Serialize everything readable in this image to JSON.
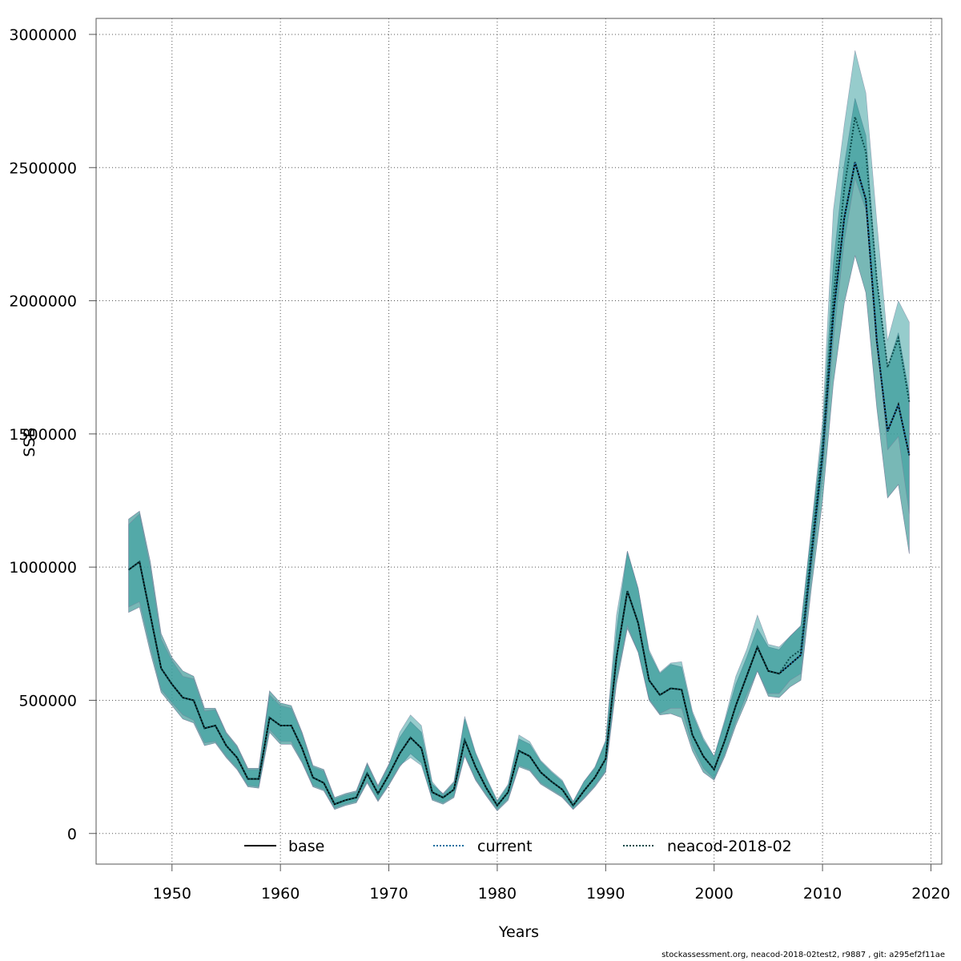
{
  "chart_data": {
    "type": "line",
    "xlabel": "Years",
    "ylabel": "SSB",
    "xlim": [
      1943,
      2021
    ],
    "ylim": [
      -115000,
      3060000
    ],
    "x_ticks": [
      1950,
      1960,
      1970,
      1980,
      1990,
      2000,
      2010,
      2020
    ],
    "y_ticks": [
      0,
      500000,
      1000000,
      1500000,
      2000000,
      2500000,
      3000000
    ],
    "grid": true,
    "legend_position": "bottom",
    "colors": {
      "base_band": "#4e8cb0",
      "current_band": "#49ac96",
      "neacod_band": "#2e9a9a",
      "line": "#000000",
      "current_line": "#1f6fa0",
      "neacod_line": "#0d4a4a"
    },
    "x": [
      1946,
      1947,
      1948,
      1949,
      1950,
      1951,
      1952,
      1953,
      1954,
      1955,
      1956,
      1957,
      1958,
      1959,
      1960,
      1961,
      1962,
      1963,
      1964,
      1965,
      1966,
      1967,
      1968,
      1969,
      1970,
      1971,
      1972,
      1973,
      1974,
      1975,
      1976,
      1977,
      1978,
      1979,
      1980,
      1981,
      1982,
      1983,
      1984,
      1985,
      1986,
      1987,
      1988,
      1989,
      1990,
      1991,
      1992,
      1993,
      1994,
      1995,
      1996,
      1997,
      1998,
      1999,
      2000,
      2001,
      2002,
      2003,
      2004,
      2005,
      2006,
      2007,
      2008,
      2009,
      2010,
      2011,
      2012,
      2013,
      2014,
      2015,
      2016,
      2017,
      2018
    ],
    "series": [
      {
        "name": "base",
        "values": [
          990000,
          1020000,
          820000,
          620000,
          560000,
          510000,
          500000,
          395000,
          405000,
          330000,
          285000,
          205000,
          205000,
          435000,
          405000,
          405000,
          320000,
          210000,
          190000,
          110000,
          125000,
          135000,
          225000,
          150000,
          220000,
          300000,
          360000,
          320000,
          155000,
          135000,
          165000,
          350000,
          250000,
          170000,
          105000,
          155000,
          310000,
          290000,
          230000,
          195000,
          165000,
          105000,
          160000,
          210000,
          280000,
          660000,
          910000,
          790000,
          575000,
          520000,
          545000,
          540000,
          370000,
          290000,
          240000,
          350000,
          480000,
          590000,
          700000,
          610000,
          600000,
          635000,
          670000,
          1050000,
          1420000,
          1950000,
          2310000,
          2520000,
          2380000,
          1850000,
          1510000,
          1610000,
          1420000
        ],
        "upper": [
          1180000,
          1210000,
          1020000,
          750000,
          660000,
          610000,
          590000,
          470000,
          470000,
          380000,
          330000,
          245000,
          245000,
          535000,
          490000,
          480000,
          380000,
          255000,
          240000,
          135000,
          150000,
          160000,
          265000,
          180000,
          260000,
          360000,
          420000,
          380000,
          185000,
          150000,
          195000,
          430000,
          300000,
          205000,
          120000,
          180000,
          355000,
          335000,
          270000,
          230000,
          195000,
          120000,
          195000,
          245000,
          345000,
          760000,
          1060000,
          920000,
          680000,
          600000,
          635000,
          625000,
          450000,
          350000,
          290000,
          420000,
          560000,
          660000,
          770000,
          700000,
          690000,
          740000,
          780000,
          1150000,
          1500000,
          2140000,
          2510000,
          2760000,
          2620000,
          2080000,
          1750000,
          1880000,
          1650000
        ],
        "lower": [
          830000,
          850000,
          680000,
          530000,
          480000,
          430000,
          415000,
          330000,
          340000,
          285000,
          240000,
          175000,
          170000,
          380000,
          335000,
          335000,
          265000,
          175000,
          160000,
          90000,
          105000,
          115000,
          190000,
          120000,
          180000,
          250000,
          300000,
          265000,
          125000,
          110000,
          135000,
          290000,
          200000,
          140000,
          85000,
          125000,
          250000,
          235000,
          185000,
          160000,
          135000,
          90000,
          130000,
          175000,
          230000,
          560000,
          770000,
          680000,
          500000,
          445000,
          450000,
          435000,
          310000,
          230000,
          200000,
          290000,
          405000,
          500000,
          610000,
          515000,
          510000,
          550000,
          575000,
          930000,
          1250000,
          1690000,
          1990000,
          2170000,
          2030000,
          1600000,
          1260000,
          1310000,
          1050000
        ]
      },
      {
        "name": "current",
        "values": [
          990000,
          1020000,
          820000,
          620000,
          560000,
          510000,
          500000,
          395000,
          405000,
          330000,
          285000,
          205000,
          205000,
          435000,
          405000,
          405000,
          320000,
          210000,
          190000,
          110000,
          125000,
          135000,
          225000,
          150000,
          220000,
          300000,
          360000,
          320000,
          155000,
          135000,
          165000,
          350000,
          250000,
          170000,
          105000,
          155000,
          310000,
          290000,
          230000,
          195000,
          165000,
          105000,
          160000,
          210000,
          280000,
          660000,
          910000,
          790000,
          575000,
          520000,
          545000,
          540000,
          370000,
          290000,
          240000,
          350000,
          480000,
          590000,
          700000,
          610000,
          600000,
          635000,
          670000,
          1050000,
          1420000,
          1950000,
          2310000,
          2520000,
          2380000,
          1850000,
          1510000,
          1610000,
          1420000
        ],
        "upper": [
          1180000,
          1210000,
          1020000,
          750000,
          660000,
          610000,
          590000,
          470000,
          470000,
          380000,
          330000,
          245000,
          245000,
          535000,
          490000,
          480000,
          380000,
          255000,
          240000,
          135000,
          150000,
          160000,
          265000,
          180000,
          260000,
          360000,
          420000,
          380000,
          185000,
          150000,
          195000,
          430000,
          300000,
          205000,
          120000,
          180000,
          355000,
          335000,
          270000,
          230000,
          195000,
          120000,
          195000,
          245000,
          345000,
          760000,
          1060000,
          920000,
          680000,
          600000,
          635000,
          625000,
          450000,
          350000,
          290000,
          420000,
          560000,
          660000,
          770000,
          700000,
          690000,
          740000,
          780000,
          1150000,
          1500000,
          2140000,
          2510000,
          2760000,
          2620000,
          2080000,
          1750000,
          1880000,
          1650000
        ],
        "lower": [
          830000,
          850000,
          680000,
          530000,
          480000,
          430000,
          415000,
          330000,
          340000,
          285000,
          240000,
          175000,
          170000,
          380000,
          335000,
          335000,
          265000,
          175000,
          160000,
          90000,
          105000,
          115000,
          190000,
          120000,
          180000,
          250000,
          300000,
          265000,
          125000,
          110000,
          135000,
          290000,
          200000,
          140000,
          85000,
          125000,
          250000,
          235000,
          185000,
          160000,
          135000,
          90000,
          130000,
          175000,
          230000,
          560000,
          770000,
          680000,
          500000,
          445000,
          450000,
          435000,
          310000,
          230000,
          200000,
          290000,
          405000,
          500000,
          610000,
          515000,
          510000,
          550000,
          575000,
          930000,
          1250000,
          1690000,
          1990000,
          2170000,
          2030000,
          1600000,
          1260000,
          1310000,
          1050000
        ]
      },
      {
        "name": "neacod-2018-02",
        "values": [
          990000,
          1020000,
          820000,
          620000,
          560000,
          510000,
          500000,
          395000,
          405000,
          330000,
          285000,
          205000,
          205000,
          435000,
          405000,
          405000,
          320000,
          210000,
          190000,
          110000,
          125000,
          135000,
          225000,
          150000,
          220000,
          300000,
          360000,
          320000,
          155000,
          135000,
          165000,
          350000,
          250000,
          170000,
          105000,
          155000,
          310000,
          290000,
          230000,
          195000,
          165000,
          105000,
          160000,
          210000,
          280000,
          660000,
          910000,
          790000,
          575000,
          520000,
          545000,
          540000,
          370000,
          290000,
          240000,
          350000,
          480000,
          590000,
          700000,
          610000,
          600000,
          660000,
          690000,
          1080000,
          1450000,
          2010000,
          2420000,
          2690000,
          2560000,
          2080000,
          1750000,
          1860000,
          1620000
        ],
        "upper": [
          1160000,
          1200000,
          1000000,
          730000,
          650000,
          590000,
          580000,
          460000,
          465000,
          375000,
          325000,
          240000,
          240000,
          520000,
          480000,
          470000,
          375000,
          250000,
          235000,
          130000,
          145000,
          155000,
          260000,
          175000,
          255000,
          380000,
          445000,
          405000,
          195000,
          145000,
          190000,
          440000,
          305000,
          210000,
          125000,
          185000,
          370000,
          345000,
          275000,
          235000,
          200000,
          120000,
          195000,
          250000,
          350000,
          820000,
          1060000,
          920000,
          690000,
          605000,
          640000,
          645000,
          460000,
          360000,
          290000,
          430000,
          590000,
          690000,
          820000,
          710000,
          700000,
          740000,
          780000,
          1160000,
          1550000,
          2340000,
          2660000,
          2940000,
          2780000,
          2300000,
          1850000,
          2000000,
          1920000
        ],
        "lower": [
          850000,
          870000,
          700000,
          540000,
          490000,
          445000,
          425000,
          340000,
          345000,
          290000,
          245000,
          180000,
          175000,
          390000,
          345000,
          345000,
          270000,
          180000,
          165000,
          95000,
          110000,
          120000,
          195000,
          125000,
          185000,
          255000,
          285000,
          255000,
          130000,
          115000,
          140000,
          295000,
          205000,
          145000,
          90000,
          130000,
          255000,
          240000,
          190000,
          165000,
          140000,
          92000,
          135000,
          180000,
          235000,
          580000,
          780000,
          680000,
          505000,
          450000,
          470000,
          470000,
          330000,
          245000,
          205000,
          300000,
          420000,
          520000,
          610000,
          525000,
          525000,
          575000,
          600000,
          980000,
          1340000,
          1850000,
          2220000,
          2460000,
          2340000,
          1880000,
          1440000,
          1490000,
          1200000
        ]
      }
    ],
    "footer": "stockassessment.org, neacod-2018-02test2, r9887 , git: a295ef2f11ae"
  }
}
